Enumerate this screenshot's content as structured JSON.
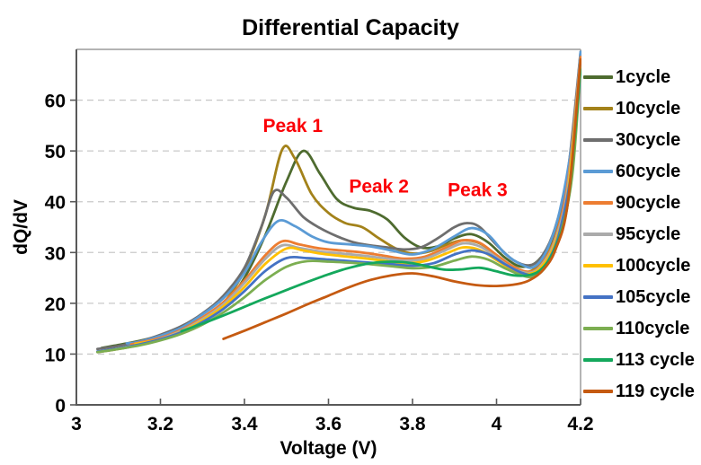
{
  "title": "Differential Capacity",
  "annotation_color": "#FB0006",
  "axis_color": "#595959",
  "border_color": "#9b9b9b",
  "grid_color": "#c9c9c9",
  "chart_data": {
    "type": "line",
    "title": "Differential Capacity",
    "xlabel": "Voltage (V)",
    "ylabel": "dQ/dV",
    "xlim": [
      3.0,
      4.2
    ],
    "ylim": [
      0,
      70
    ],
    "x_ticks": [
      3.0,
      3.2,
      3.4,
      3.6,
      3.8,
      4.0,
      4.2
    ],
    "x_tick_labels": [
      "3",
      "3.2",
      "3.4",
      "3.6",
      "3.8",
      "4",
      "4.2"
    ],
    "y_ticks": [
      0,
      10,
      20,
      30,
      40,
      50,
      60
    ],
    "y_tick_labels": [
      "0",
      "10",
      "20",
      "30",
      "40",
      "50",
      "60"
    ],
    "grid": "horizontal-dashed",
    "legend_position": "right",
    "annotations": [
      {
        "label": "Peak 1",
        "x": 3.515,
        "y": 55.0
      },
      {
        "label": "Peak 2",
        "x": 3.72,
        "y": 43.0
      },
      {
        "label": "Peak 3",
        "x": 3.955,
        "y": 42.3
      }
    ],
    "series": [
      {
        "name": "1cycle",
        "color": "#4E6B2F",
        "points": [
          [
            3.06,
            11.2
          ],
          [
            3.1,
            11.8
          ],
          [
            3.15,
            12.6
          ],
          [
            3.2,
            13.6
          ],
          [
            3.25,
            14.8
          ],
          [
            3.3,
            16.5
          ],
          [
            3.35,
            19.5
          ],
          [
            3.4,
            25
          ],
          [
            3.45,
            33.5
          ],
          [
            3.5,
            44
          ],
          [
            3.54,
            50
          ],
          [
            3.58,
            45.5
          ],
          [
            3.62,
            40.5
          ],
          [
            3.66,
            38.8
          ],
          [
            3.7,
            38.2
          ],
          [
            3.74,
            36.5
          ],
          [
            3.78,
            33
          ],
          [
            3.82,
            31
          ],
          [
            3.86,
            31.2
          ],
          [
            3.9,
            32.8
          ],
          [
            3.94,
            33.6
          ],
          [
            3.98,
            32
          ],
          [
            4.02,
            29
          ],
          [
            4.06,
            27.2
          ],
          [
            4.1,
            28.5
          ],
          [
            4.14,
            34
          ],
          [
            4.17,
            45
          ],
          [
            4.2,
            69
          ]
        ]
      },
      {
        "name": "10cycle",
        "color": "#A3821A",
        "points": [
          [
            3.05,
            10.4
          ],
          [
            3.1,
            11
          ],
          [
            3.15,
            11.8
          ],
          [
            3.2,
            12.8
          ],
          [
            3.25,
            14.2
          ],
          [
            3.3,
            16.5
          ],
          [
            3.35,
            20
          ],
          [
            3.4,
            26.5
          ],
          [
            3.45,
            37.5
          ],
          [
            3.49,
            50.3
          ],
          [
            3.52,
            48.5
          ],
          [
            3.56,
            41.5
          ],
          [
            3.6,
            37.8
          ],
          [
            3.64,
            35.8
          ],
          [
            3.68,
            35
          ],
          [
            3.72,
            32.8
          ],
          [
            3.76,
            30.8
          ],
          [
            3.8,
            29.8
          ],
          [
            3.84,
            30.2
          ],
          [
            3.88,
            31.5
          ],
          [
            3.92,
            32.4
          ],
          [
            3.96,
            31.8
          ],
          [
            4.0,
            29.5
          ],
          [
            4.04,
            27.2
          ],
          [
            4.08,
            26.3
          ],
          [
            4.12,
            29.5
          ],
          [
            4.15,
            36
          ],
          [
            4.18,
            50
          ],
          [
            4.2,
            68
          ]
        ]
      },
      {
        "name": "30cycle",
        "color": "#6E6E6E",
        "points": [
          [
            3.05,
            11
          ],
          [
            3.1,
            11.6
          ],
          [
            3.15,
            12.5
          ],
          [
            3.2,
            13.8
          ],
          [
            3.25,
            15.5
          ],
          [
            3.3,
            18
          ],
          [
            3.35,
            21.5
          ],
          [
            3.4,
            27
          ],
          [
            3.44,
            35
          ],
          [
            3.47,
            42
          ],
          [
            3.5,
            40.8
          ],
          [
            3.54,
            37
          ],
          [
            3.58,
            34.8
          ],
          [
            3.62,
            33.2
          ],
          [
            3.66,
            32
          ],
          [
            3.7,
            31.4
          ],
          [
            3.74,
            31
          ],
          [
            3.78,
            30.6
          ],
          [
            3.82,
            31
          ],
          [
            3.86,
            32.8
          ],
          [
            3.9,
            35
          ],
          [
            3.93,
            35.8
          ],
          [
            3.96,
            35
          ],
          [
            4.0,
            31.5
          ],
          [
            4.04,
            28.5
          ],
          [
            4.08,
            27.5
          ],
          [
            4.11,
            29.5
          ],
          [
            4.14,
            35
          ],
          [
            4.17,
            46
          ],
          [
            4.2,
            69.5
          ]
        ]
      },
      {
        "name": "60cycle",
        "color": "#5B9BD5",
        "points": [
          [
            3.12,
            12.1
          ],
          [
            3.15,
            12.4
          ],
          [
            3.2,
            13.6
          ],
          [
            3.25,
            15.2
          ],
          [
            3.3,
            17.8
          ],
          [
            3.35,
            21
          ],
          [
            3.4,
            26
          ],
          [
            3.44,
            32
          ],
          [
            3.48,
            36.2
          ],
          [
            3.52,
            35.2
          ],
          [
            3.56,
            33.2
          ],
          [
            3.6,
            32
          ],
          [
            3.65,
            31.6
          ],
          [
            3.7,
            31.2
          ],
          [
            3.75,
            30.4
          ],
          [
            3.8,
            29.6
          ],
          [
            3.85,
            30.8
          ],
          [
            3.9,
            33.2
          ],
          [
            3.94,
            34.8
          ],
          [
            3.98,
            33.5
          ],
          [
            4.02,
            29.8
          ],
          [
            4.06,
            27.6
          ],
          [
            4.09,
            27.2
          ],
          [
            4.12,
            30.5
          ],
          [
            4.15,
            38
          ],
          [
            4.18,
            52
          ],
          [
            4.2,
            69.5
          ]
        ]
      },
      {
        "name": "90cycle",
        "color": "#ED7D31",
        "points": [
          [
            3.13,
            11.9
          ],
          [
            3.2,
            13.2
          ],
          [
            3.25,
            14.8
          ],
          [
            3.3,
            17.2
          ],
          [
            3.35,
            20.2
          ],
          [
            3.4,
            24.5
          ],
          [
            3.45,
            29.5
          ],
          [
            3.49,
            32.2
          ],
          [
            3.53,
            31.6
          ],
          [
            3.58,
            30.8
          ],
          [
            3.63,
            30.4
          ],
          [
            3.68,
            30
          ],
          [
            3.73,
            29.4
          ],
          [
            3.78,
            28.8
          ],
          [
            3.83,
            29.2
          ],
          [
            3.88,
            31
          ],
          [
            3.92,
            32.4
          ],
          [
            3.96,
            31.9
          ],
          [
            4.0,
            29.5
          ],
          [
            4.04,
            27.2
          ],
          [
            4.08,
            26.2
          ],
          [
            4.11,
            28
          ],
          [
            4.14,
            33
          ],
          [
            4.17,
            44
          ],
          [
            4.2,
            68.5
          ]
        ]
      },
      {
        "name": "95cycle",
        "color": "#ABABAB",
        "points": [
          [
            3.05,
            10.5
          ],
          [
            3.1,
            11.1
          ],
          [
            3.15,
            11.9
          ],
          [
            3.2,
            13
          ],
          [
            3.25,
            14.6
          ],
          [
            3.3,
            16.9
          ],
          [
            3.35,
            19.8
          ],
          [
            3.4,
            24
          ],
          [
            3.45,
            28.8
          ],
          [
            3.49,
            31.4
          ],
          [
            3.53,
            30.9
          ],
          [
            3.58,
            30.2
          ],
          [
            3.63,
            29.8
          ],
          [
            3.68,
            29.4
          ],
          [
            3.73,
            28.9
          ],
          [
            3.78,
            28.4
          ],
          [
            3.83,
            28.8
          ],
          [
            3.88,
            30.5
          ],
          [
            3.92,
            31.8
          ],
          [
            3.96,
            31.2
          ],
          [
            4.0,
            29
          ],
          [
            4.04,
            26.8
          ],
          [
            4.08,
            26
          ],
          [
            4.11,
            27.8
          ],
          [
            4.14,
            32.5
          ],
          [
            4.17,
            43
          ],
          [
            4.2,
            68
          ]
        ]
      },
      {
        "name": "100cycle",
        "color": "#FFC000",
        "points": [
          [
            3.14,
            12
          ],
          [
            3.2,
            12.9
          ],
          [
            3.25,
            14.4
          ],
          [
            3.3,
            16.6
          ],
          [
            3.35,
            19.4
          ],
          [
            3.4,
            23.2
          ],
          [
            3.45,
            27.8
          ],
          [
            3.5,
            30.8
          ],
          [
            3.54,
            30.4
          ],
          [
            3.58,
            29.8
          ],
          [
            3.63,
            29.3
          ],
          [
            3.68,
            28.9
          ],
          [
            3.73,
            28.4
          ],
          [
            3.78,
            27.9
          ],
          [
            3.83,
            28.3
          ],
          [
            3.88,
            29.8
          ],
          [
            3.92,
            31
          ],
          [
            3.96,
            30.5
          ],
          [
            4.0,
            28.5
          ],
          [
            4.04,
            26.5
          ],
          [
            4.08,
            25.8
          ],
          [
            4.11,
            27.5
          ],
          [
            4.14,
            32
          ],
          [
            4.17,
            42
          ],
          [
            4.2,
            67.5
          ]
        ]
      },
      {
        "name": "105cycle",
        "color": "#4472C4",
        "points": [
          [
            3.05,
            10.5
          ],
          [
            3.1,
            11.1
          ],
          [
            3.15,
            11.9
          ],
          [
            3.2,
            12.9
          ],
          [
            3.25,
            14.3
          ],
          [
            3.3,
            16.3
          ],
          [
            3.35,
            18.9
          ],
          [
            3.4,
            22.4
          ],
          [
            3.45,
            26.4
          ],
          [
            3.5,
            28.9
          ],
          [
            3.55,
            28.9
          ],
          [
            3.6,
            28.6
          ],
          [
            3.65,
            28.3
          ],
          [
            3.7,
            28
          ],
          [
            3.75,
            27.7
          ],
          [
            3.8,
            27.4
          ],
          [
            3.85,
            27.9
          ],
          [
            3.9,
            29.6
          ],
          [
            3.94,
            30.4
          ],
          [
            3.98,
            29.7
          ],
          [
            4.02,
            27.7
          ],
          [
            4.06,
            26
          ],
          [
            4.09,
            25.7
          ],
          [
            4.12,
            28
          ],
          [
            4.15,
            34
          ],
          [
            4.18,
            47
          ],
          [
            4.2,
            67
          ]
        ]
      },
      {
        "name": "110cycle",
        "color": "#7CAE51",
        "points": [
          [
            3.05,
            10.4
          ],
          [
            3.1,
            11
          ],
          [
            3.15,
            11.7
          ],
          [
            3.2,
            12.7
          ],
          [
            3.25,
            14
          ],
          [
            3.3,
            15.8
          ],
          [
            3.35,
            18.2
          ],
          [
            3.4,
            21.2
          ],
          [
            3.45,
            24.6
          ],
          [
            3.5,
            27.2
          ],
          [
            3.55,
            28.3
          ],
          [
            3.6,
            28.2
          ],
          [
            3.65,
            28
          ],
          [
            3.7,
            27.7
          ],
          [
            3.75,
            27.3
          ],
          [
            3.8,
            26.9
          ],
          [
            3.85,
            27.2
          ],
          [
            3.9,
            28.4
          ],
          [
            3.94,
            29.2
          ],
          [
            3.98,
            28.6
          ],
          [
            4.02,
            26.9
          ],
          [
            4.06,
            25.5
          ],
          [
            4.09,
            25.3
          ],
          [
            4.12,
            27.5
          ],
          [
            4.15,
            33
          ],
          [
            4.18,
            45
          ],
          [
            4.2,
            66.5
          ]
        ]
      },
      {
        "name": "113 cycle",
        "color": "#14A85C",
        "points": [
          [
            3.25,
            14.5
          ],
          [
            3.3,
            16
          ],
          [
            3.35,
            17.6
          ],
          [
            3.4,
            19.3
          ],
          [
            3.45,
            21
          ],
          [
            3.5,
            22.6
          ],
          [
            3.55,
            24.2
          ],
          [
            3.6,
            25.7
          ],
          [
            3.65,
            27
          ],
          [
            3.7,
            27.9
          ],
          [
            3.75,
            28.2
          ],
          [
            3.8,
            27.9
          ],
          [
            3.85,
            27
          ],
          [
            3.88,
            26.6
          ],
          [
            3.92,
            26.7
          ],
          [
            3.96,
            27
          ],
          [
            4.0,
            26.3
          ],
          [
            4.04,
            25.5
          ],
          [
            4.08,
            25.6
          ],
          [
            4.11,
            27
          ],
          [
            4.14,
            31
          ],
          [
            4.17,
            40
          ],
          [
            4.2,
            66
          ]
        ]
      },
      {
        "name": "119 cycle",
        "color": "#C55A11",
        "points": [
          [
            3.35,
            13
          ],
          [
            3.4,
            14.6
          ],
          [
            3.45,
            16.3
          ],
          [
            3.5,
            18
          ],
          [
            3.55,
            19.8
          ],
          [
            3.6,
            21.5
          ],
          [
            3.65,
            23.2
          ],
          [
            3.7,
            24.6
          ],
          [
            3.75,
            25.5
          ],
          [
            3.8,
            25.9
          ],
          [
            3.85,
            25.3
          ],
          [
            3.9,
            24.3
          ],
          [
            3.95,
            23.6
          ],
          [
            4.0,
            23.4
          ],
          [
            4.05,
            23.8
          ],
          [
            4.08,
            24.6
          ],
          [
            4.11,
            26.5
          ],
          [
            4.14,
            30.5
          ],
          [
            4.17,
            40
          ],
          [
            4.2,
            68
          ]
        ]
      }
    ]
  }
}
